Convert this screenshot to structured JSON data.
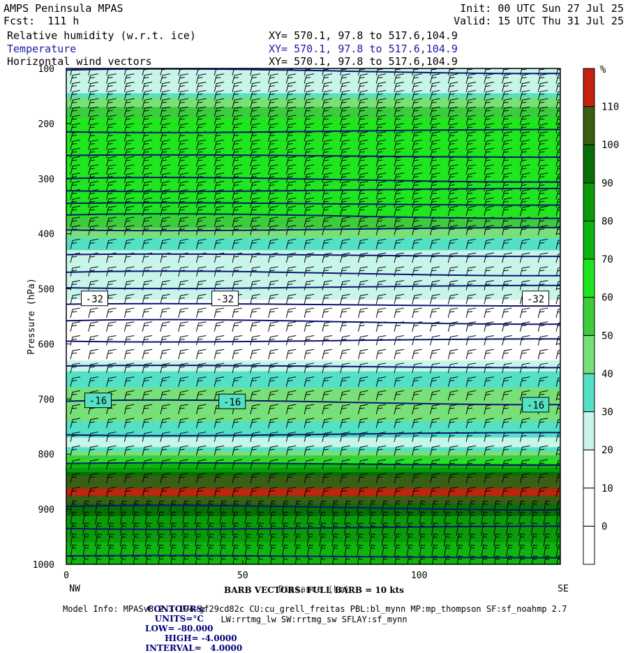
{
  "header": {
    "left_title": "AMPS Peninsula MPAS",
    "forecast": "Fcst:  111 h",
    "init": "Init: 00 UTC Sun 27 Jul 25",
    "valid": "Valid: 15 UTC Thu 31 Jul 25",
    "fields": [
      {
        "name": "Relative humidity (w.r.t. ice)",
        "coords": "XY= 570.1, 97.8 to 517.6,104.9"
      },
      {
        "name": "Temperature",
        "coords": "XY= 570.1, 97.8 to 517.6,104.9"
      },
      {
        "name": "Horizontal wind vectors",
        "coords": "XY= 570.1, 97.8 to 517.6,104.9"
      }
    ]
  },
  "colors": {
    "contour": "#0a1470",
    "temperature_title": "#1a1aa8",
    "footer_blue": "#00007f"
  },
  "chart_data": {
    "type": "heatmap",
    "xlabel": "Distance (km)",
    "ylabel": "Pressure (hPa)",
    "xlim": [
      0,
      140
    ],
    "ylim": [
      1000,
      100
    ],
    "x_ticks": [
      0,
      50,
      100
    ],
    "y_ticks": [
      100,
      200,
      300,
      400,
      500,
      600,
      700,
      800,
      900,
      1000
    ],
    "x_end_labels": {
      "left": "NW",
      "right": "SE"
    },
    "colorbar": {
      "unit": "%",
      "levels": [
        0,
        10,
        20,
        30,
        40,
        50,
        60,
        70,
        80,
        90,
        100,
        110
      ],
      "colors": [
        "#ffffff",
        "#ffffff",
        "#ffffff",
        "#c8f5ea",
        "#54e0c4",
        "#78e078",
        "#3ccc3c",
        "#1fe61f",
        "#0fb40f",
        "#0a9a0a",
        "#086f08",
        "#3b5e14",
        "#c52010"
      ]
    },
    "rh_profile": [
      {
        "p": 100,
        "rh": 20
      },
      {
        "p": 130,
        "rh": 20
      },
      {
        "p": 160,
        "rh": 45
      },
      {
        "p": 200,
        "rh": 65
      },
      {
        "p": 240,
        "rh": 70
      },
      {
        "p": 280,
        "rh": 65
      },
      {
        "p": 320,
        "rh": 70
      },
      {
        "p": 360,
        "rh": 65
      },
      {
        "p": 400,
        "rh": 45
      },
      {
        "p": 430,
        "rh": 30
      },
      {
        "p": 470,
        "rh": 20
      },
      {
        "p": 520,
        "rh": 20
      },
      {
        "p": 560,
        "rh": 15
      },
      {
        "p": 620,
        "rh": 15
      },
      {
        "p": 660,
        "rh": 35
      },
      {
        "p": 700,
        "rh": 45
      },
      {
        "p": 740,
        "rh": 40
      },
      {
        "p": 780,
        "rh": 25
      },
      {
        "p": 810,
        "rh": 60
      },
      {
        "p": 840,
        "rh": 100
      },
      {
        "p": 870,
        "rh": 115
      },
      {
        "p": 890,
        "rh": 100
      },
      {
        "p": 920,
        "rh": 85
      },
      {
        "p": 960,
        "rh": 80
      },
      {
        "p": 1000,
        "rh": 75
      }
    ],
    "temperature_contours": {
      "units": "°C",
      "interval": 4,
      "low": -80,
      "high": -4,
      "isotherm_pressures": [
        103,
        215,
        258,
        300,
        322,
        345,
        366,
        393,
        438,
        470,
        498,
        528,
        558,
        595,
        640,
        704,
        765,
        817,
        895,
        935,
        985
      ],
      "labels": [
        {
          "text": "-32",
          "x": 8,
          "p": 518
        },
        {
          "text": "-32",
          "x": 45,
          "p": 518
        },
        {
          "text": "-32",
          "x": 133,
          "p": 518
        },
        {
          "text": "-16",
          "x": 9,
          "p": 703
        },
        {
          "text": "-16",
          "x": 47,
          "p": 705
        },
        {
          "text": "-16",
          "x": 133,
          "p": 711
        }
      ]
    },
    "wind_barb_rows_hpa": [
      105,
      120,
      135,
      150,
      165,
      180,
      195,
      210,
      225,
      240,
      255,
      270,
      285,
      300,
      315,
      330,
      345,
      360,
      380,
      395,
      420,
      445,
      470,
      495,
      520,
      545,
      570,
      595,
      620,
      645,
      670,
      695,
      720,
      745,
      770,
      795,
      820,
      845,
      870,
      895,
      915,
      935,
      955,
      975,
      995
    ]
  },
  "footer": {
    "barb_note": "BARB VECTORS: FULL BARB = 10 kts",
    "xlabel_overlap": "Distance (km)",
    "contours_line": {
      "label": "CONTOURS:",
      "units": "UNITS=°C",
      "low": "LOW= -80.000",
      "high": "HIGH= -4.0000",
      "interval": "INTERVAL=   4.0000"
    },
    "model_info_1": "Model Info: MPASv8.2.3-194-gf29cd82c CU:cu_grell_freitas PBL:bl_mynn MP:mp_thompson SF:sf_noahmp 2.7",
    "model_info_2": "LW:rrtmg_lw SW:rrtmg_sw SFLAY:sf_mynn"
  }
}
